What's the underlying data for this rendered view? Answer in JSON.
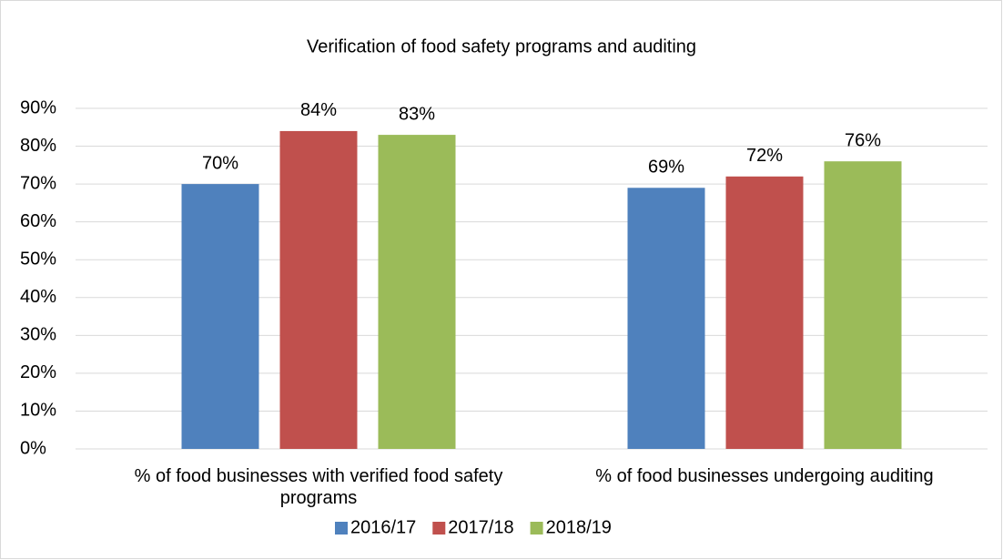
{
  "chart_data": {
    "type": "bar",
    "title": "Verification of food safety programs and auditing",
    "categories": [
      "% of food businesses with verified food safety programs",
      "% of food businesses undergoing auditing"
    ],
    "series": [
      {
        "name": "2016/17",
        "color": "#4f81bd",
        "values": [
          70,
          69
        ],
        "value_labels": [
          "70%",
          "69%"
        ]
      },
      {
        "name": "2017/18",
        "color": "#c0504d",
        "values": [
          84,
          72
        ],
        "value_labels": [
          "84%",
          "72%"
        ]
      },
      {
        "name": "2018/19",
        "color": "#9bbb59",
        "values": [
          83,
          76
        ],
        "value_labels": [
          "83%",
          "76%"
        ]
      }
    ],
    "ylim": [
      0,
      90
    ],
    "yticks": [
      {
        "value": 0,
        "label": "0%"
      },
      {
        "value": 10,
        "label": "10%"
      },
      {
        "value": 20,
        "label": "20%"
      },
      {
        "value": 30,
        "label": "30%"
      },
      {
        "value": 40,
        "label": "40%"
      },
      {
        "value": 50,
        "label": "50%"
      },
      {
        "value": 60,
        "label": "60%"
      },
      {
        "value": 70,
        "label": "70%"
      },
      {
        "value": 80,
        "label": "80%"
      },
      {
        "value": 90,
        "label": "90%"
      }
    ],
    "grid": true,
    "legend": "bottom"
  }
}
